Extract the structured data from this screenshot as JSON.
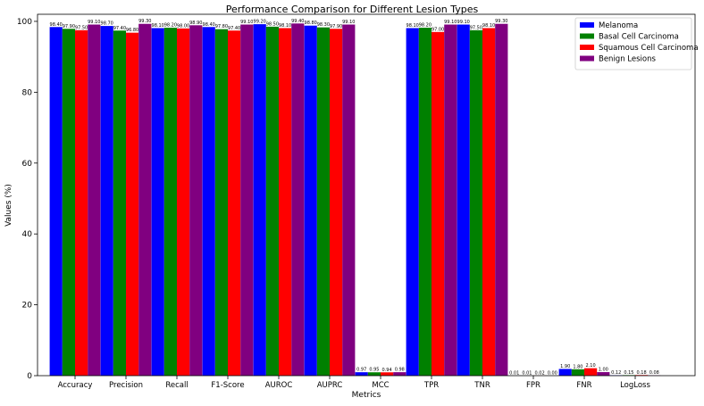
{
  "chart_data": {
    "type": "bar",
    "title": "Performance Comparison for Different Lesion Types",
    "xlabel": "Metrics",
    "ylabel": "Values (%)",
    "ylim": [
      0,
      102
    ],
    "yticks": [
      0,
      20,
      40,
      60,
      80,
      100
    ],
    "grid": false,
    "legend_position": "top-right",
    "categories": [
      "Accuracy",
      "Precision",
      "Recall",
      "F1-Score",
      "AUROC",
      "AUPRC",
      "MCC",
      "TPR",
      "TNR",
      "FPR",
      "FNR",
      "LogLoss"
    ],
    "series": [
      {
        "name": "Melanoma",
        "color": "#0000ff",
        "values": [
          98.4,
          98.7,
          98.1,
          98.4,
          99.2,
          98.8,
          0.97,
          98.1,
          99.1,
          0.01,
          1.9,
          0.12
        ],
        "labels": [
          "98.40",
          "98.70",
          "98.10",
          "98.40",
          "99.20",
          "98.80",
          "0.97",
          "98.10",
          "99.10",
          "0.01",
          "1.90",
          "0.12"
        ]
      },
      {
        "name": "Basal Cell Carcinoma",
        "color": "#008000",
        "values": [
          97.9,
          97.4,
          98.2,
          97.8,
          98.5,
          98.3,
          0.95,
          98.2,
          97.5,
          0.01,
          1.8,
          0.15
        ],
        "labels": [
          "97.90",
          "97.40",
          "98.20",
          "97.80",
          "98.50",
          "98.30",
          "0.95",
          "98.20",
          "97.50",
          "0.01",
          "1.80",
          "0.15"
        ]
      },
      {
        "name": "Squamous Cell Carcinoma",
        "color": "#ff0000",
        "values": [
          97.5,
          96.8,
          98.0,
          97.4,
          98.1,
          97.9,
          0.94,
          97.0,
          98.1,
          0.02,
          2.1,
          0.18
        ],
        "labels": [
          "97.50",
          "96.80",
          "98.00",
          "97.40",
          "98.10",
          "97.90",
          "0.94",
          "97.00",
          "98.10",
          "0.02",
          "2.10",
          "0.18"
        ]
      },
      {
        "name": "Benign Lesions",
        "color": "#800080",
        "values": [
          99.1,
          99.3,
          98.9,
          99.1,
          99.4,
          99.1,
          0.98,
          99.1,
          99.3,
          0.0,
          1.0,
          0.08
        ],
        "labels": [
          "99.10",
          "99.30",
          "98.90",
          "99.10",
          "99.40",
          "99.10",
          "0.98",
          "99.10",
          "99.30",
          "0.00",
          "1.00",
          "0.08"
        ]
      }
    ]
  }
}
